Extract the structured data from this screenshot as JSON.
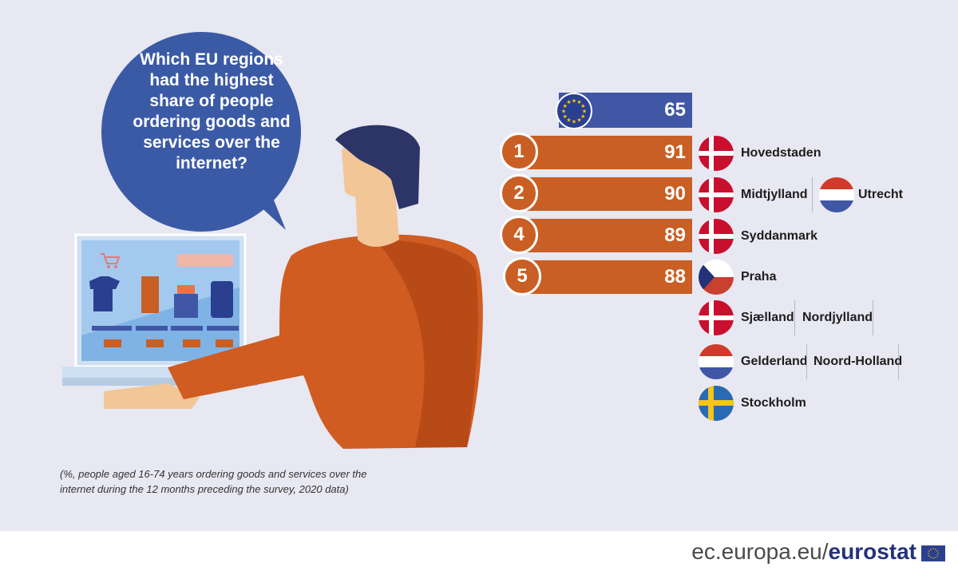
{
  "question": "Which EU regions had the highest share of people ordering goods and services over the internet?",
  "footnote": "(%, people aged 16-74 years ordering goods and services over the internet during the 12 months preceding the survey, 2020 data)",
  "footer": {
    "site": "ec.europa.eu/",
    "brand": "eurostat"
  },
  "colors": {
    "eu_bar": "#3f57a4",
    "rank_bar": "#c95f24",
    "background": "#e8e8f2"
  },
  "chart_data": {
    "type": "bar",
    "eu_average": {
      "label_icon": "eu-flag",
      "value": 65
    },
    "ranks": [
      {
        "rank": "1",
        "value": 91,
        "regions": [
          {
            "name": "Hovedstaden",
            "flag": "denmark"
          }
        ]
      },
      {
        "rank": "2",
        "value": 90,
        "regions": [
          {
            "name": "Midtjylland",
            "flag": "denmark"
          },
          {
            "name": "Utrecht",
            "flag": "netherlands"
          }
        ]
      },
      {
        "rank": "4",
        "value": 89,
        "regions": [
          {
            "name": "Syddanmark",
            "flag": "denmark"
          }
        ]
      },
      {
        "rank": "5",
        "value": 88,
        "regions": [
          {
            "name": "Praha",
            "flag": "czechia"
          },
          {
            "name": "Sjælland",
            "flag": "denmark"
          },
          {
            "name": "Nordjylland",
            "flag": "denmark"
          },
          {
            "name": "Gelderland",
            "flag": "netherlands"
          },
          {
            "name": "Noord-Holland",
            "flag": "netherlands"
          },
          {
            "name": "Stockholm",
            "flag": "sweden"
          }
        ]
      }
    ]
  }
}
